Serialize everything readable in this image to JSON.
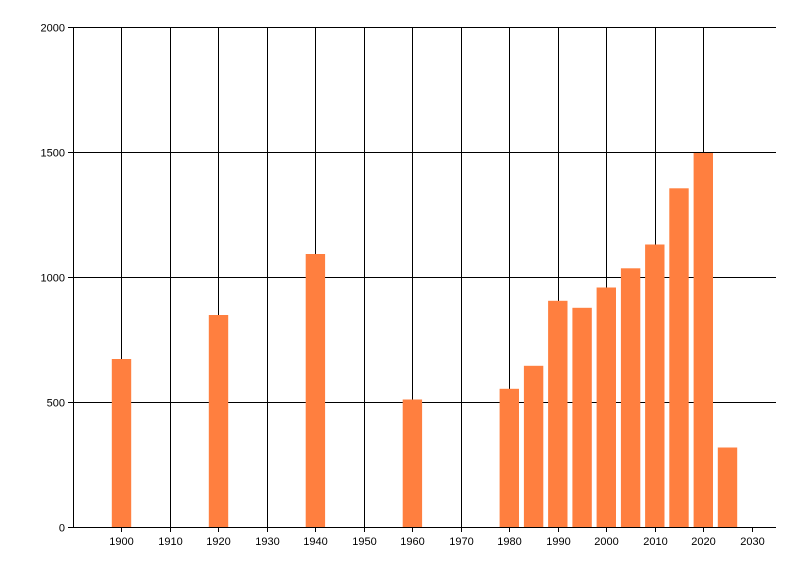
{
  "chart_data": {
    "type": "bar",
    "title": "",
    "xlabel": "",
    "ylabel": "",
    "xlim": [
      1890,
      2035
    ],
    "ylim": [
      0,
      2000
    ],
    "x_ticks": [
      1900,
      1910,
      1920,
      1930,
      1940,
      1950,
      1960,
      1970,
      1980,
      1990,
      2000,
      2010,
      2020,
      2030
    ],
    "y_ticks": [
      0,
      500,
      1000,
      1500,
      2000
    ],
    "grid": true,
    "bar_width_years": 4,
    "bar_color": "#ff7f3f",
    "series": [
      {
        "x": [
          1900,
          1920,
          1940,
          1960,
          1980,
          1985,
          1990,
          1995,
          2000,
          2005,
          2010,
          2015,
          2020,
          2025
        ],
        "values": [
          672,
          848,
          1092,
          510,
          553,
          645,
          905,
          877,
          958,
          1035,
          1130,
          1355,
          1496,
          318
        ]
      }
    ]
  }
}
